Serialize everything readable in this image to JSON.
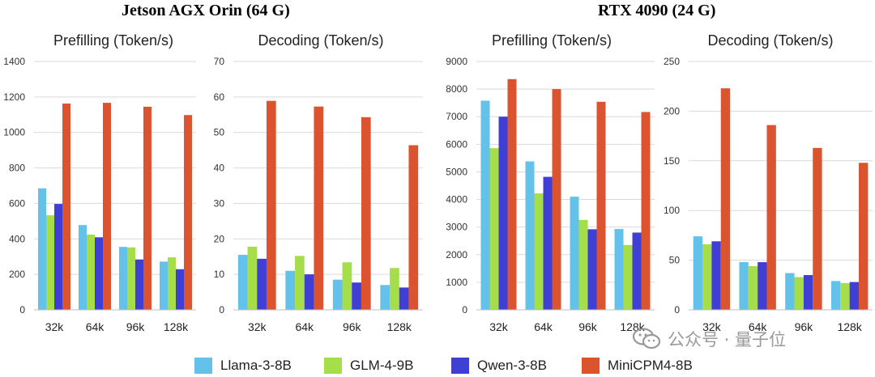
{
  "groups": [
    {
      "title": "Jetson AGX Orin (64 G)"
    },
    {
      "title": "RTX 4090 (24 G)"
    }
  ],
  "colors": {
    "Llama-3-8B": "#63c1ea",
    "GLM-4-9B": "#a6de4a",
    "Qwen-3-8B": "#3f3fd6",
    "MiniCPM4-8B": "#dc532f"
  },
  "legend": [
    "Llama-3-8B",
    "GLM-4-9B",
    "Qwen-3-8B",
    "MiniCPM4-8B"
  ],
  "watermark": "公众号 · 量子位",
  "chart_data": [
    {
      "type": "bar",
      "title": "Prefilling (Token/s)",
      "group": "Jetson AGX Orin (64 G)",
      "categories": [
        "32k",
        "64k",
        "96k",
        "128k"
      ],
      "ylim": [
        0,
        1400
      ],
      "yticks": [
        0,
        200,
        400,
        600,
        800,
        1000,
        1200,
        1400
      ],
      "series": [
        {
          "name": "Llama-3-8B",
          "values": [
            685,
            478,
            355,
            272
          ]
        },
        {
          "name": "GLM-4-9B",
          "values": [
            533,
            424,
            352,
            296
          ]
        },
        {
          "name": "Qwen-3-8B",
          "values": [
            597,
            409,
            284,
            229
          ]
        },
        {
          "name": "MiniCPM4-8B",
          "values": [
            1163,
            1167,
            1145,
            1098
          ]
        }
      ]
    },
    {
      "type": "bar",
      "title": "Decoding (Token/s)",
      "group": "Jetson AGX Orin (64 G)",
      "categories": [
        "32k",
        "64k",
        "96k",
        "128k"
      ],
      "ylim": [
        0,
        70
      ],
      "yticks": [
        0,
        10,
        20,
        30,
        40,
        50,
        60,
        70
      ],
      "series": [
        {
          "name": "Llama-3-8B",
          "values": [
            15.5,
            11.0,
            8.5,
            7.0
          ]
        },
        {
          "name": "GLM-4-9B",
          "values": [
            17.8,
            15.2,
            13.4,
            11.8
          ]
        },
        {
          "name": "Qwen-3-8B",
          "values": [
            14.4,
            10.0,
            7.7,
            6.3
          ]
        },
        {
          "name": "MiniCPM4-8B",
          "values": [
            58.9,
            57.3,
            54.3,
            46.4
          ]
        }
      ]
    },
    {
      "type": "bar",
      "title": "Prefilling (Token/s)",
      "group": "RTX 4090 (24 G)",
      "categories": [
        "32k",
        "64k",
        "96k",
        "128k"
      ],
      "ylim": [
        0,
        9000
      ],
      "yticks": [
        0,
        1000,
        2000,
        3000,
        4000,
        5000,
        6000,
        7000,
        8000,
        9000
      ],
      "series": [
        {
          "name": "Llama-3-8B",
          "values": [
            7580,
            5380,
            4100,
            2930
          ]
        },
        {
          "name": "GLM-4-9B",
          "values": [
            5860,
            4220,
            3260,
            2350
          ]
        },
        {
          "name": "Qwen-3-8B",
          "values": [
            7000,
            4820,
            2920,
            2800
          ]
        },
        {
          "name": "MiniCPM4-8B",
          "values": [
            8360,
            8000,
            7540,
            7170
          ]
        }
      ]
    },
    {
      "type": "bar",
      "title": "Decoding (Token/s)",
      "group": "RTX 4090 (24 G)",
      "categories": [
        "32k",
        "64k",
        "96k",
        "128k"
      ],
      "ylim": [
        0,
        250
      ],
      "yticks": [
        0,
        50,
        100,
        150,
        200,
        250
      ],
      "series": [
        {
          "name": "Llama-3-8B",
          "values": [
            74,
            48,
            37,
            29
          ]
        },
        {
          "name": "GLM-4-9B",
          "values": [
            66,
            44,
            33,
            27
          ]
        },
        {
          "name": "Qwen-3-8B",
          "values": [
            69,
            48,
            35,
            28
          ]
        },
        {
          "name": "MiniCPM4-8B",
          "values": [
            223,
            186,
            163,
            148
          ]
        }
      ]
    }
  ]
}
